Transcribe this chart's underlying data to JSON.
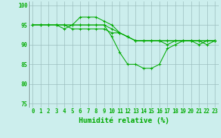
{
  "x": [
    0,
    1,
    2,
    3,
    4,
    5,
    6,
    7,
    8,
    9,
    10,
    11,
    12,
    13,
    14,
    15,
    16,
    17,
    18,
    19,
    20,
    21,
    22,
    23
  ],
  "line1": [
    95,
    95,
    95,
    95,
    94,
    95,
    97,
    97,
    97,
    96,
    95,
    93,
    92,
    91,
    91,
    91,
    91,
    90,
    91,
    91,
    91,
    91,
    90,
    91
  ],
  "line2": [
    95,
    95,
    95,
    95,
    95,
    95,
    95,
    95,
    95,
    95,
    94,
    93,
    92,
    91,
    91,
    91,
    91,
    91,
    91,
    91,
    91,
    91,
    91,
    91
  ],
  "line3": [
    95,
    95,
    95,
    95,
    95,
    94,
    94,
    94,
    94,
    94,
    93,
    93,
    92,
    91,
    91,
    91,
    91,
    91,
    91,
    91,
    91,
    91,
    91,
    91
  ],
  "line4": [
    95,
    95,
    95,
    95,
    95,
    95,
    95,
    95,
    95,
    95,
    92,
    88,
    85,
    85,
    84,
    84,
    85,
    89,
    90,
    91,
    91,
    90,
    91,
    91
  ],
  "bg_color": "#cceeed",
  "line_color": "#00aa00",
  "grid_color": "#99bbbb",
  "ylim": [
    74,
    101
  ],
  "yticks": [
    75,
    80,
    85,
    90,
    95,
    100
  ],
  "xticks": [
    0,
    1,
    2,
    3,
    4,
    5,
    6,
    7,
    8,
    9,
    10,
    11,
    12,
    13,
    14,
    15,
    16,
    17,
    18,
    19,
    20,
    21,
    22,
    23
  ],
  "xlabel": "Humidité relative (%)",
  "tick_fontsize": 5.5,
  "xlabel_fontsize": 7.5
}
